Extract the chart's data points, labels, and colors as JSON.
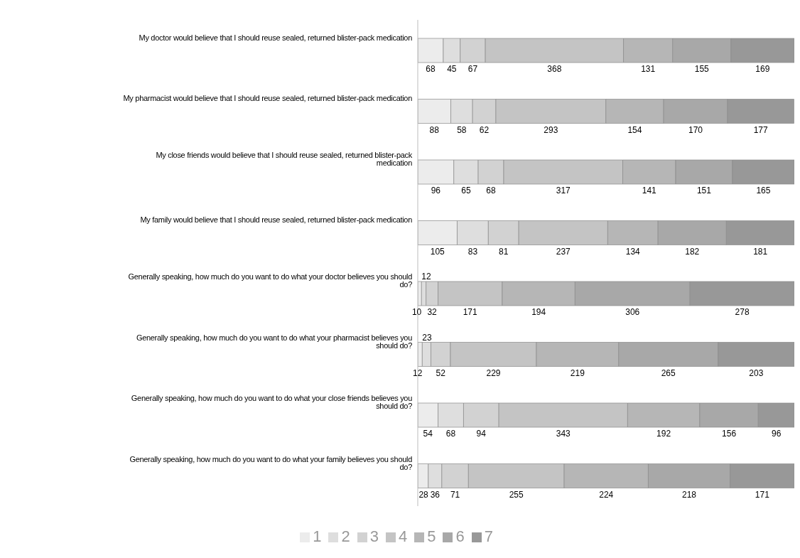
{
  "chart_data": {
    "type": "bar",
    "orientation": "horizontal",
    "stacked": true,
    "data_labels": true,
    "grid": false,
    "legend": "bottom",
    "categories": [
      "My doctor would believe that I should reuse sealed, returned blister-pack medication",
      "My pharmacist would believe that I should reuse sealed, returned blister-pack medication",
      "My close friends would believe that I should reuse sealed, returned blister-pack medication",
      "My family would believe that I should reuse sealed, returned blister-pack medication",
      "Generally speaking, how much do you want to do what your doctor believes you should do?",
      "Generally speaking, how much do you want to do what your pharmacist believes you should do?",
      "Generally speaking, how much do you want to do what your close friends believes you should do?",
      "Generally speaking, how much do you want to do what your family believes you should do?"
    ],
    "series": [
      {
        "name": "1",
        "color": "#ececec",
        "values": [
          68,
          88,
          96,
          105,
          10,
          12,
          54,
          28
        ]
      },
      {
        "name": "2",
        "color": "#dedede",
        "values": [
          45,
          58,
          65,
          83,
          12,
          23,
          68,
          36
        ]
      },
      {
        "name": "3",
        "color": "#d2d2d2",
        "values": [
          67,
          62,
          68,
          81,
          32,
          52,
          94,
          71
        ]
      },
      {
        "name": "4",
        "color": "#c4c4c4",
        "values": [
          368,
          293,
          317,
          237,
          171,
          229,
          343,
          255
        ]
      },
      {
        "name": "5",
        "color": "#b6b6b6",
        "values": [
          131,
          154,
          141,
          134,
          194,
          219,
          192,
          224
        ]
      },
      {
        "name": "6",
        "color": "#a8a8a8",
        "values": [
          155,
          170,
          151,
          182,
          306,
          265,
          156,
          218
        ]
      },
      {
        "name": "7",
        "color": "#989898",
        "values": [
          169,
          177,
          165,
          181,
          278,
          203,
          96,
          171
        ]
      }
    ]
  }
}
